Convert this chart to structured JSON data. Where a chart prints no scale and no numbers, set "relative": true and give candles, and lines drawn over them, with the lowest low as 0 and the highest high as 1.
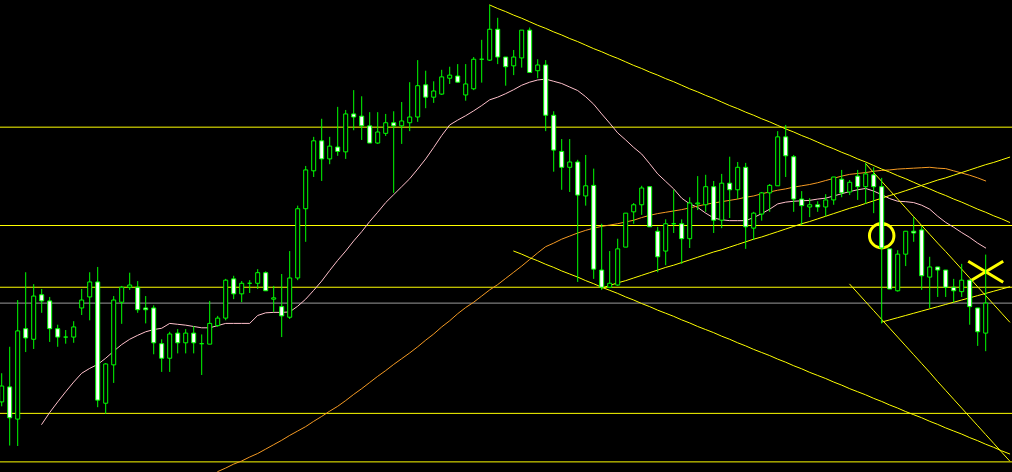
{
  "chart_data": {
    "type": "candlestick",
    "relative": true,
    "color": "#00ff00",
    "categories": [
      null,
      null,
      null,
      null,
      null,
      null,
      null,
      null,
      null,
      null,
      null,
      null,
      null,
      null,
      null,
      null,
      null,
      null,
      null,
      null,
      null,
      null,
      null,
      null,
      null,
      null,
      null,
      null,
      null,
      null,
      null,
      null,
      null,
      null,
      null,
      null,
      null,
      null,
      null,
      null,
      null,
      null,
      null,
      null,
      null,
      null,
      null,
      null,
      null,
      null,
      null,
      null,
      null,
      null,
      null,
      null,
      null,
      null,
      null,
      null,
      null,
      null,
      null,
      null,
      null,
      null,
      null,
      null,
      null,
      null,
      null,
      null,
      null,
      null,
      null,
      null,
      null,
      null,
      null,
      null,
      null,
      null,
      null,
      null,
      null,
      null,
      null,
      null,
      null,
      null,
      null,
      null,
      null,
      null,
      null,
      null,
      null,
      null,
      null,
      null,
      null,
      null,
      null,
      null,
      null,
      null,
      null,
      null,
      null,
      null,
      null,
      null,
      null,
      null,
      null,
      null,
      null,
      null,
      null,
      null,
      null,
      null,
      null,
      null,
      null,
      null,
      null
    ],
    "ohlc": [
      [
        0.1,
        0.165,
        0.09,
        0.136
      ],
      [
        0.134,
        0.225,
        0.001,
        0.064
      ],
      [
        0.061,
        0.331,
        0,
        0.261
      ],
      [
        0.266,
        0.394,
        0.213,
        0.245
      ],
      [
        0.242,
        0.367,
        0.22,
        0.34
      ],
      [
        0.343,
        0.356,
        0.302,
        0.329
      ],
      [
        0.329,
        0.338,
        0.236,
        0.266
      ],
      [
        0.266,
        0.275,
        0.225,
        0.247
      ],
      [
        0.247,
        0.263,
        0.232,
        0.247
      ],
      [
        0.247,
        0.283,
        0.234,
        0.27
      ],
      [
        0.313,
        0.356,
        0.297,
        0.331
      ],
      [
        0.338,
        0.394,
        0.285,
        0.372
      ],
      [
        0.372,
        0.406,
        0.088,
        0.104
      ],
      [
        0.097,
        0.188,
        0.073,
        0.186
      ],
      [
        0.184,
        0.34,
        0.143,
        0.331
      ],
      [
        0.326,
        0.363,
        0.277,
        0.36
      ],
      [
        0.36,
        0.393,
        0.354,
        0.365
      ],
      [
        0.36,
        0.374,
        0.302,
        0.309
      ],
      [
        0.313,
        0.34,
        0.278,
        0.309
      ],
      [
        0.313,
        0.319,
        0.208,
        0.234
      ],
      [
        0.232,
        0.242,
        0.168,
        0.199
      ],
      [
        0.199,
        0.259,
        0.168,
        0.254
      ],
      [
        0.256,
        0.265,
        0.21,
        0.234
      ],
      [
        0.234,
        0.265,
        0.21,
        0.256
      ],
      [
        0.256,
        0.272,
        0.21,
        0.234
      ],
      [
        0.232,
        0.253,
        0.161,
        0.232
      ],
      [
        0.231,
        0.329,
        0.231,
        0.278
      ],
      [
        0.273,
        0.295,
        0.27,
        0.29
      ],
      [
        0.29,
        0.379,
        0.285,
        0.376
      ],
      [
        0.379,
        0.386,
        0.333,
        0.345
      ],
      [
        0.345,
        0.374,
        0.326,
        0.369
      ],
      [
        0.369,
        0.376,
        0.347,
        0.369
      ],
      [
        0.369,
        0.401,
        0.356,
        0.393
      ],
      [
        0.393,
        0.396,
        0.352,
        0.352
      ],
      [
        0.333,
        0.363,
        0.304,
        0.336
      ],
      [
        0.316,
        0.39,
        0.247,
        0.295
      ],
      [
        0.292,
        0.442,
        0.288,
        0.381
      ],
      [
        0.381,
        0.545,
        0.376,
        0.538
      ],
      [
        0.538,
        0.635,
        0.463,
        0.626
      ],
      [
        0.624,
        0.701,
        0.61,
        0.692
      ],
      [
        0.692,
        0.742,
        0.601,
        0.651
      ],
      [
        0.651,
        0.701,
        0.639,
        0.68
      ],
      [
        0.678,
        0.769,
        0.658,
        0.668
      ],
      [
        0.667,
        0.762,
        0.651,
        0.753
      ],
      [
        0.753,
        0.807,
        0.716,
        0.746
      ],
      [
        0.748,
        0.793,
        0.694,
        0.726
      ],
      [
        0.726,
        0.757,
        0.687,
        0.687
      ],
      [
        0.687,
        0.757,
        0.685,
        0.712
      ],
      [
        0.709,
        0.753,
        0.703,
        0.733
      ],
      [
        0.733,
        0.759,
        0.574,
        0.726
      ],
      [
        0.726,
        0.78,
        0.685,
        0.737
      ],
      [
        0.733,
        0.825,
        0.714,
        0.746
      ],
      [
        0.746,
        0.875,
        0.735,
        0.817
      ],
      [
        0.819,
        0.851,
        0.766,
        0.791
      ],
      [
        0.791,
        0.827,
        0.778,
        0.805
      ],
      [
        0.798,
        0.853,
        0.796,
        0.837
      ],
      [
        0.834,
        0.86,
        0.821,
        0.841
      ],
      [
        0.839,
        0.866,
        0.824,
        0.825
      ],
      [
        0.796,
        0.866,
        0.783,
        0.821
      ],
      [
        0.81,
        0.882,
        0.807,
        0.877
      ],
      [
        0.877,
        0.921,
        0.824,
        0.877
      ],
      [
        0.875,
        1,
        0.873,
        0.945
      ],
      [
        0.945,
        0.971,
        0.866,
        0.882
      ],
      [
        0.882,
        0.882,
        0.817,
        0.86
      ],
      [
        0.862,
        0.898,
        0.841,
        0.882
      ],
      [
        0.88,
        0.943,
        0.858,
        0.943
      ],
      [
        0.943,
        0.949,
        0.847,
        0.847
      ],
      [
        0.851,
        0.877,
        0.834,
        0.864
      ],
      [
        0.864,
        0.875,
        0.714,
        0.75
      ],
      [
        0.75,
        0.759,
        0.622,
        0.671
      ],
      [
        0.668,
        0.696,
        0.581,
        0.632
      ],
      [
        0.632,
        0.696,
        0.576,
        0.644
      ],
      [
        0.644,
        0.649,
        0.372,
        0.569
      ],
      [
        0.567,
        0.66,
        0.545,
        0.59
      ],
      [
        0.591,
        0.629,
        0.379,
        0.401
      ],
      [
        0.399,
        0.504,
        0.354,
        0.36
      ],
      [
        0.36,
        0.442,
        0.358,
        0.369
      ],
      [
        0.365,
        0.47,
        0.363,
        0.447
      ],
      [
        0.451,
        0.528,
        0.451,
        0.528
      ],
      [
        0.531,
        0.551,
        0.504,
        0.547
      ],
      [
        0.547,
        0.59,
        0.524,
        0.585
      ],
      [
        0.588,
        0.588,
        0.497,
        0.497
      ],
      [
        0.487,
        0.497,
        0.394,
        0.429
      ],
      [
        0.442,
        0.514,
        0.41,
        0.504
      ],
      [
        0.504,
        0.581,
        0.483,
        0.504
      ],
      [
        0.504,
        0.514,
        0.413,
        0.47
      ],
      [
        0.47,
        0.564,
        0.449,
        0.551
      ],
      [
        0.549,
        0.612,
        0.535,
        0.551
      ],
      [
        0.547,
        0.615,
        0.531,
        0.588
      ],
      [
        0.588,
        0.601,
        0.483,
        0.512
      ],
      [
        0.512,
        0.617,
        0.494,
        0.596
      ],
      [
        0.596,
        0.656,
        0.517,
        0.581
      ],
      [
        0.581,
        0.644,
        0.56,
        0.632
      ],
      [
        0.632,
        0.642,
        0.447,
        0.497
      ],
      [
        0.494,
        0.531,
        0.467,
        0.528
      ],
      [
        0.526,
        0.576,
        0.511,
        0.574
      ],
      [
        0.574,
        0.594,
        0.531,
        0.591
      ],
      [
        0.59,
        0.714,
        0.59,
        0.701
      ],
      [
        0.701,
        0.728,
        0.61,
        0.658
      ],
      [
        0.656,
        0.66,
        0.531,
        0.56
      ],
      [
        0.56,
        0.578,
        0.501,
        0.545
      ],
      [
        0.542,
        0.562,
        0.519,
        0.547
      ],
      [
        0.547,
        0.555,
        0.531,
        0.542
      ],
      [
        0.542,
        0.571,
        0.521,
        0.558
      ],
      [
        0.558,
        0.61,
        0.547,
        0.61
      ],
      [
        0.605,
        0.626,
        0.564,
        0.574
      ],
      [
        0.576,
        0.603,
        0.569,
        0.598
      ],
      [
        0.612,
        0.626,
        0.558,
        0.588
      ],
      [
        0.588,
        0.642,
        0.549,
        0.617
      ],
      [
        0.615,
        0.632,
        0.528,
        0.588
      ],
      [
        0.588,
        0.608,
        0.278,
        0.449
      ],
      [
        0.447,
        0.447,
        0.356,
        0.356
      ],
      [
        0.352,
        0.444,
        0.35,
        0.435
      ],
      [
        0.435,
        0.487,
        0.408,
        0.487
      ],
      [
        0.487,
        0.519,
        0.463,
        0.483
      ],
      [
        0.49,
        0.499,
        0.354,
        0.386
      ],
      [
        0.383,
        0.429,
        0.313,
        0.406
      ],
      [
        0.406,
        0.406,
        0.338,
        0.399
      ],
      [
        0.399,
        0.399,
        0.338,
        0.36
      ],
      [
        0.36,
        0.379,
        0.326,
        0.352
      ],
      [
        0.35,
        0.413,
        0.338,
        0.376
      ],
      [
        0.376,
        0.376,
        0.275,
        0.316
      ],
      [
        0.313,
        0.313,
        0.227,
        0.259
      ],
      [
        0.256,
        0.434,
        0.215,
        0.324
      ],
      null,
      null,
      null
    ],
    "colors": [
      "#000000",
      "#ffffff",
      "#000000",
      "#ffffff",
      "#000000",
      "#ffffff",
      "#ffffff",
      "#ffffff",
      "#00ff00",
      "#000000",
      "#000000",
      "#000000",
      "#ffffff",
      "#000000",
      "#000000",
      "#000000",
      "#000000",
      "#ffffff",
      "#ffffff",
      "#ffffff",
      "#ffffff",
      "#000000",
      "#ffffff",
      "#000000",
      "#ffffff",
      "#00ff00",
      "#000000",
      "#000000",
      "#000000",
      "#ffffff",
      "#000000",
      "#00ff00",
      "#000000",
      "#ffffff",
      "#000000",
      "#ffffff",
      "#000000",
      "#000000",
      "#000000",
      "#000000",
      "#ffffff",
      "#000000",
      "#ffffff",
      "#000000",
      "#ffffff",
      "#ffffff",
      "#ffffff",
      "#000000",
      "#000000",
      "#ffffff",
      "#000000",
      "#000000",
      "#000000",
      "#ffffff",
      "#000000",
      "#000000",
      "#000000",
      "#ffffff",
      "#000000",
      "#000000",
      "#00ff00",
      "#000000",
      "#ffffff",
      "#ffffff",
      "#000000",
      "#000000",
      "#ffffff",
      "#000000",
      "#ffffff",
      "#ffffff",
      "#ffffff",
      "#000000",
      "#ffffff",
      "#000000",
      "#ffffff",
      "#ffffff",
      "#000000",
      "#000000",
      "#000000",
      "#000000",
      "#000000",
      "#ffffff",
      "#ffffff",
      "#000000",
      "#00ff00",
      "#ffffff",
      "#000000",
      "#000000",
      "#000000",
      "#ffffff",
      "#000000",
      "#ffffff",
      "#000000",
      "#ffffff",
      "#000000",
      "#000000",
      "#000000",
      "#000000",
      "#ffffff",
      "#ffffff",
      "#ffffff",
      "#000000",
      "#ffffff",
      "#000000",
      "#000000",
      "#ffffff",
      "#000000",
      "#ffffff",
      "#000000",
      "#ffffff",
      "#ffffff",
      "#ffffff",
      "#000000",
      "#000000",
      "#ffffff",
      "#ffffff",
      "#000000",
      "#ffffff",
      "#ffffff",
      "#ffffff",
      "#000000",
      "#ffffff",
      "#ffffff",
      "#000000",
      null,
      null,
      null
    ],
    "series": [
      {
        "type": "line",
        "color": "#ffc0cb",
        "values": [
          null,
          null,
          null,
          null,
          null,
          0.049,
          0.076,
          0.1,
          0.123,
          0.145,
          0.165,
          0.176,
          0.185,
          0.199,
          0.215,
          0.23,
          0.242,
          0.251,
          0.259,
          0.264,
          0.267,
          0.278,
          0.276,
          0.274,
          0.271,
          0.268,
          0.268,
          0.273,
          0.278,
          0.278,
          0.278,
          0.278,
          0.296,
          0.302,
          0.303,
          0.303,
          0.304,
          0.317,
          0.333,
          0.353,
          0.374,
          0.398,
          0.421,
          0.442,
          0.465,
          0.486,
          0.509,
          0.53,
          0.552,
          0.57,
          0.588,
          0.606,
          0.628,
          0.651,
          0.677,
          0.704,
          0.728,
          0.739,
          0.749,
          0.76,
          0.772,
          0.785,
          0.791,
          0.799,
          0.808,
          0.818,
          0.825,
          0.83,
          0.832,
          0.827,
          0.822,
          0.814,
          0.806,
          0.792,
          0.775,
          0.753,
          0.732,
          0.71,
          0.694,
          0.677,
          0.662,
          0.64,
          0.617,
          0.6,
          0.583,
          0.562,
          0.549,
          0.541,
          0.528,
          0.517,
          0.513,
          0.511,
          0.511,
          0.511,
          0.518,
          0.527,
          0.537,
          0.549,
          0.553,
          0.555,
          0.556,
          0.557,
          0.56,
          0.562,
          0.567,
          0.572,
          0.577,
          0.581,
          0.584,
          0.578,
          0.57,
          0.561,
          0.555,
          0.554,
          0.552,
          0.546,
          0.537,
          0.521,
          0.507,
          0.496,
          0.484,
          0.473,
          0.46,
          0.449,
          null,
          null,
          null
        ]
      },
      {
        "type": "line",
        "color": "#f59a23",
        "values": [
          null,
          null,
          null,
          null,
          null,
          null,
          null,
          null,
          null,
          null,
          null,
          null,
          null,
          null,
          null,
          null,
          null,
          null,
          null,
          null,
          null,
          null,
          null,
          null,
          null,
          null,
          null,
          -0.058,
          -0.05,
          -0.041,
          -0.034,
          -0.025,
          -0.017,
          -0.007,
          0.003,
          0.013,
          0.024,
          0.034,
          0.044,
          0.056,
          0.067,
          0.079,
          0.09,
          0.103,
          0.117,
          0.13,
          0.144,
          0.158,
          0.171,
          0.185,
          0.198,
          0.211,
          0.225,
          0.24,
          0.254,
          0.27,
          0.284,
          0.3,
          0.314,
          0.326,
          0.34,
          0.354,
          0.366,
          0.38,
          0.394,
          0.408,
          0.423,
          0.438,
          0.452,
          0.46,
          0.469,
          0.476,
          0.483,
          0.489,
          0.494,
          0.498,
          0.501,
          0.504,
          0.508,
          0.512,
          0.518,
          0.523,
          0.527,
          0.53,
          0.533,
          0.536,
          0.54,
          0.544,
          0.548,
          0.551,
          0.554,
          0.557,
          0.56,
          0.564,
          0.567,
          0.572,
          0.576,
          0.58,
          0.583,
          0.587,
          0.59,
          0.593,
          0.597,
          0.602,
          0.607,
          0.612,
          0.616,
          0.618,
          0.62,
          0.623,
          0.625,
          0.626,
          0.628,
          0.629,
          0.63,
          0.631,
          0.632,
          0.63,
          0.629,
          0.624,
          0.619,
          0.614,
          0.608,
          0.601,
          null,
          null,
          null
        ]
      },
      {
        "type": "line",
        "color": "#ffff00",
        "values": [
          null,
          null,
          null,
          null,
          null,
          null,
          null,
          null,
          null,
          null,
          null,
          null,
          null,
          null,
          null,
          null,
          null,
          null,
          null,
          null,
          null,
          null,
          null,
          null,
          null,
          null,
          null,
          null,
          null,
          null,
          null,
          null,
          null,
          null,
          null,
          null,
          null,
          null,
          null,
          null,
          null,
          null,
          null,
          null,
          null,
          null,
          null,
          null,
          null,
          null,
          null,
          null,
          null,
          null,
          null,
          null,
          null,
          null,
          null,
          null,
          null,
          1,
          0.992,
          0.985,
          0.977,
          0.97,
          0.962,
          0.954,
          0.947,
          0.939,
          0.932,
          0.924,
          0.917,
          0.909,
          0.901,
          0.894,
          0.886,
          0.879,
          0.871,
          0.863,
          0.856,
          0.848,
          0.841,
          0.833,
          0.826,
          0.818,
          0.81,
          0.803,
          0.795,
          0.788,
          0.78,
          0.772,
          0.765,
          0.757,
          0.75,
          0.742,
          0.735,
          0.727,
          0.719,
          0.712,
          0.704,
          0.697,
          0.689,
          0.681,
          0.674,
          0.666,
          0.659,
          0.651,
          0.644,
          0.636,
          0.628,
          0.621,
          0.613,
          0.606,
          0.598,
          0.59,
          0.583,
          0.575,
          0.568,
          0.56,
          0.553,
          0.545,
          0.537,
          0.53,
          0.522,
          0.515,
          0.507
        ]
      },
      {
        "type": "line",
        "color": "#ffff00",
        "values": [
          null,
          null,
          null,
          null,
          null,
          null,
          null,
          null,
          null,
          null,
          null,
          null,
          null,
          null,
          null,
          null,
          null,
          null,
          null,
          null,
          null,
          null,
          null,
          null,
          null,
          null,
          null,
          null,
          null,
          null,
          null,
          null,
          null,
          null,
          null,
          null,
          null,
          null,
          null,
          null,
          null,
          null,
          null,
          null,
          null,
          null,
          null,
          null,
          null,
          null,
          null,
          null,
          null,
          null,
          null,
          null,
          null,
          null,
          null,
          null,
          null,
          null,
          null,
          null,
          null,
          null,
          null,
          null,
          null,
          null,
          null,
          null,
          null,
          null,
          null,
          0.358,
          0.364,
          0.37,
          0.375,
          0.381,
          0.387,
          0.393,
          0.399,
          0.405,
          0.41,
          0.416,
          0.422,
          0.428,
          0.434,
          0.44,
          0.445,
          0.451,
          0.457,
          0.463,
          0.469,
          0.474,
          0.48,
          0.486,
          0.492,
          0.498,
          0.504,
          0.509,
          0.515,
          0.521,
          0.527,
          0.533,
          0.539,
          0.544,
          0.55,
          0.556,
          0.562,
          0.568,
          0.573,
          0.579,
          0.585,
          0.591,
          0.597,
          0.603,
          0.608,
          0.614,
          0.62,
          0.626,
          0.632,
          0.638,
          0.643,
          0.649,
          0.655
        ]
      },
      {
        "type": "line",
        "color": "#ffff00",
        "values": [
          null,
          null,
          null,
          null,
          null,
          null,
          null,
          null,
          null,
          null,
          null,
          null,
          null,
          null,
          null,
          null,
          null,
          null,
          null,
          null,
          null,
          null,
          null,
          null,
          null,
          null,
          null,
          null,
          null,
          null,
          null,
          null,
          null,
          null,
          null,
          null,
          null,
          null,
          null,
          null,
          null,
          null,
          null,
          null,
          null,
          null,
          null,
          null,
          null,
          null,
          null,
          null,
          null,
          null,
          null,
          null,
          null,
          null,
          null,
          null,
          null,
          null,
          null,
          null,
          0.442,
          0.435,
          0.427,
          0.42,
          0.412,
          0.405,
          0.397,
          0.39,
          0.383,
          0.375,
          0.368,
          0.36,
          0.353,
          0.346,
          0.338,
          0.331,
          0.323,
          0.316,
          0.308,
          0.301,
          0.294,
          0.286,
          0.279,
          0.271,
          0.264,
          0.257,
          0.249,
          0.242,
          0.234,
          0.227,
          0.219,
          0.212,
          0.205,
          0.197,
          0.19,
          0.182,
          0.175,
          0.167,
          0.16,
          0.153,
          0.145,
          0.138,
          0.13,
          0.123,
          0.116,
          0.108,
          0.101,
          0.093,
          0.086,
          0.078,
          0.071,
          0.064,
          0.056,
          0.049,
          0.041,
          0.034,
          0.027,
          0.019,
          0.012,
          0.004,
          -0.003,
          -0.011,
          -0.018
        ]
      },
      {
        "type": "line",
        "color": "#ffff00",
        "values": [
          null,
          null,
          null,
          null,
          null,
          null,
          null,
          null,
          null,
          null,
          null,
          null,
          null,
          null,
          null,
          null,
          null,
          null,
          null,
          null,
          null,
          null,
          null,
          null,
          null,
          null,
          null,
          null,
          null,
          null,
          null,
          null,
          null,
          null,
          null,
          null,
          null,
          null,
          null,
          null,
          null,
          null,
          null,
          null,
          null,
          null,
          null,
          null,
          null,
          null,
          null,
          null,
          null,
          null,
          null,
          null,
          null,
          null,
          null,
          null,
          null,
          null,
          null,
          null,
          null,
          null,
          null,
          null,
          null,
          null,
          null,
          null,
          null,
          null,
          null,
          null,
          null,
          null,
          null,
          null,
          null,
          null,
          null,
          null,
          null,
          null,
          null,
          null,
          null,
          null,
          null,
          null,
          null,
          null,
          null,
          null,
          null,
          null,
          null,
          null,
          null,
          null,
          null,
          null,
          null,
          null,
          null,
          null,
          0.64,
          0.62,
          0.6,
          0.58,
          0.56,
          0.54,
          0.52,
          0.5,
          0.48,
          0.46,
          0.441,
          0.421,
          0.401,
          0.381,
          0.361,
          0.341,
          0.321,
          0.301,
          0.281
        ]
      },
      {
        "type": "line",
        "color": "#ffff00",
        "values": [
          null,
          null,
          null,
          null,
          null,
          null,
          null,
          null,
          null,
          null,
          null,
          null,
          null,
          null,
          null,
          null,
          null,
          null,
          null,
          null,
          null,
          null,
          null,
          null,
          null,
          null,
          null,
          null,
          null,
          null,
          null,
          null,
          null,
          null,
          null,
          null,
          null,
          null,
          null,
          null,
          null,
          null,
          null,
          null,
          null,
          null,
          null,
          null,
          null,
          null,
          null,
          null,
          null,
          null,
          null,
          null,
          null,
          null,
          null,
          null,
          null,
          null,
          null,
          null,
          null,
          null,
          null,
          null,
          null,
          null,
          null,
          null,
          null,
          null,
          null,
          null,
          null,
          null,
          null,
          null,
          null,
          null,
          null,
          null,
          null,
          null,
          null,
          null,
          null,
          null,
          null,
          null,
          null,
          null,
          null,
          null,
          null,
          null,
          null,
          null,
          null,
          null,
          null,
          null,
          null,
          null,
          0.367,
          0.347,
          0.327,
          0.307,
          0.287,
          0.267,
          0.247,
          0.227,
          0.207,
          0.187,
          0.167,
          0.146,
          0.126,
          0.106,
          0.086,
          0.066,
          0.046,
          0.026,
          0.006,
          -0.014,
          -0.034
        ]
      },
      {
        "type": "line",
        "color": "#ffff00",
        "values": [
          null,
          null,
          null,
          null,
          null,
          null,
          null,
          null,
          null,
          null,
          null,
          null,
          null,
          null,
          null,
          null,
          null,
          null,
          null,
          null,
          null,
          null,
          null,
          null,
          null,
          null,
          null,
          null,
          null,
          null,
          null,
          null,
          null,
          null,
          null,
          null,
          null,
          null,
          null,
          null,
          null,
          null,
          null,
          null,
          null,
          null,
          null,
          null,
          null,
          null,
          null,
          null,
          null,
          null,
          null,
          null,
          null,
          null,
          null,
          null,
          null,
          null,
          null,
          null,
          null,
          null,
          null,
          null,
          null,
          null,
          null,
          null,
          null,
          null,
          null,
          null,
          null,
          null,
          null,
          null,
          null,
          null,
          null,
          null,
          null,
          null,
          null,
          null,
          null,
          null,
          null,
          null,
          null,
          null,
          null,
          null,
          null,
          null,
          null,
          null,
          null,
          null,
          null,
          null,
          null,
          null,
          null,
          null,
          null,
          null,
          0.281,
          0.286,
          0.291,
          0.296,
          0.301,
          0.306,
          0.311,
          0.316,
          0.321,
          0.326,
          0.331,
          0.336,
          0.341,
          0.346,
          0.351,
          0.356,
          0.361
        ]
      },
      {
        "type": "scatter",
        "marker": "circle",
        "color": "#ffff00",
        "values": [
          null,
          null,
          null,
          null,
          null,
          null,
          null,
          null,
          null,
          null,
          null,
          null,
          null,
          null,
          null,
          null,
          null,
          null,
          null,
          null,
          null,
          null,
          null,
          null,
          null,
          null,
          null,
          null,
          null,
          null,
          null,
          null,
          null,
          null,
          null,
          null,
          null,
          null,
          null,
          null,
          null,
          null,
          null,
          null,
          null,
          null,
          null,
          null,
          null,
          null,
          null,
          null,
          null,
          null,
          null,
          null,
          null,
          null,
          null,
          null,
          null,
          null,
          null,
          null,
          null,
          null,
          null,
          null,
          null,
          null,
          null,
          null,
          null,
          null,
          null,
          null,
          null,
          null,
          null,
          null,
          null,
          null,
          null,
          null,
          null,
          null,
          null,
          null,
          null,
          null,
          null,
          null,
          null,
          null,
          null,
          null,
          null,
          null,
          null,
          null,
          null,
          null,
          null,
          null,
          null,
          null,
          null,
          null,
          null,
          null,
          0.477,
          null,
          null,
          null,
          null,
          null,
          null,
          null,
          null,
          null,
          null,
          null,
          null,
          null,
          null,
          null,
          null
        ]
      },
      {
        "type": "scatter",
        "marker": "cross",
        "color": "#ffff00",
        "values": [
          null,
          null,
          null,
          null,
          null,
          null,
          null,
          null,
          null,
          null,
          null,
          null,
          null,
          null,
          null,
          null,
          null,
          null,
          null,
          null,
          null,
          null,
          null,
          null,
          null,
          null,
          null,
          null,
          null,
          null,
          null,
          null,
          null,
          null,
          null,
          null,
          null,
          null,
          null,
          null,
          null,
          null,
          null,
          null,
          null,
          null,
          null,
          null,
          null,
          null,
          null,
          null,
          null,
          null,
          null,
          null,
          null,
          null,
          null,
          null,
          null,
          null,
          null,
          null,
          null,
          null,
          null,
          null,
          null,
          null,
          null,
          null,
          null,
          null,
          null,
          null,
          null,
          null,
          null,
          null,
          null,
          null,
          null,
          null,
          null,
          null,
          null,
          null,
          null,
          null,
          null,
          null,
          null,
          null,
          null,
          null,
          null,
          null,
          null,
          null,
          null,
          null,
          null,
          null,
          null,
          null,
          null,
          null,
          null,
          null,
          null,
          null,
          null,
          null,
          null,
          null,
          null,
          null,
          null,
          null,
          null,
          null,
          null,
          0.395,
          null,
          null,
          null
        ]
      }
    ],
    "ref_lines": [
      {
        "axis": "y",
        "value": 0.723,
        "color": "#ffff00"
      },
      {
        "axis": "y",
        "value": 0.5,
        "color": "#ffff00"
      },
      {
        "axis": "y",
        "value": 0.36,
        "color": "#ffff00"
      },
      {
        "axis": "y",
        "value": 0.324,
        "color": "#9a9a9a"
      },
      {
        "axis": "y",
        "value": 0.074,
        "color": "#ffff00"
      },
      {
        "axis": "y",
        "value": -0.036,
        "color": "#ffff00"
      }
    ]
  }
}
